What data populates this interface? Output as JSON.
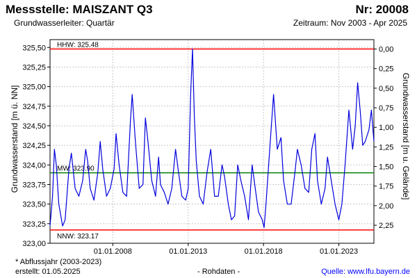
{
  "header": {
    "title": "Messstelle: MAISZANT Q3",
    "number": "Nr: 20008",
    "aquifer": "Grundwasserleiter: Quartär",
    "period": "Zeitraum: Nov 2003 - Apr 2025"
  },
  "footer": {
    "note": "* Abflussjahr (2003-2023)",
    "created": "erstellt:  01.05.2025",
    "raw": "- Rohdaten -",
    "source": "Quelle: www.lfu.bayern.de"
  },
  "colors": {
    "series": "#0000dd",
    "hhw": "#ff0000",
    "nnw": "#ff0000",
    "mw": "#008000",
    "grid": "#c8c8c8"
  },
  "chart_data": {
    "type": "line",
    "xlabel": "",
    "ylabel": "Grundwasserstand [m ü. NN]",
    "y2label": "Grundwasserstand [m u. Gelände]",
    "xlim": [
      "2003-11-01",
      "2025-04-30"
    ],
    "ylim": [
      323.0,
      325.6
    ],
    "x_ticks": [
      "01.01.2008",
      "01.01.2013",
      "01.01.2018",
      "01.01.2023"
    ],
    "y_ticks": [
      "323,00",
      "323,25",
      "323,50",
      "323,75",
      "324,00",
      "324,25",
      "324,50",
      "324,75",
      "325,00",
      "325,25",
      "325,50"
    ],
    "y2_ticks": [
      "0,00",
      "0,25",
      "0,50",
      "0,75",
      "1,00",
      "1,25",
      "1,50",
      "1,75",
      "2,00",
      "2,25"
    ],
    "y2_ground_level": 325.48,
    "grid": true,
    "reference_lines": [
      {
        "label": "HHW: 325.48",
        "value": 325.48
      },
      {
        "label": "MW: 323.90",
        "value": 323.9
      },
      {
        "label": "NNW: 323.17",
        "value": 323.17
      }
    ],
    "series": [
      {
        "x": [
          "2003-11-01",
          "2004-01-01",
          "2004-02-15",
          "2004-04-01",
          "2004-06-01",
          "2004-09-01",
          "2004-11-01",
          "2005-02-01",
          "2005-04-01",
          "2005-07-01",
          "2005-10-01",
          "2006-01-01",
          "2006-03-15",
          "2006-05-01",
          "2006-07-01",
          "2006-10-01",
          "2007-01-01",
          "2007-03-01",
          "2007-05-01",
          "2007-08-01",
          "2007-11-01",
          "2008-02-01",
          "2008-03-20",
          "2008-06-01",
          "2008-09-01",
          "2008-12-01",
          "2009-03-01",
          "2009-04-15",
          "2009-07-01",
          "2009-10-01",
          "2010-01-01",
          "2010-03-01",
          "2010-05-01",
          "2010-08-01",
          "2010-11-01",
          "2011-01-15",
          "2011-03-01",
          "2011-06-01",
          "2011-09-01",
          "2011-12-01",
          "2012-03-01",
          "2012-05-01",
          "2012-08-01",
          "2012-11-01",
          "2013-01-01",
          "2013-03-01",
          "2013-04-15",
          "2013-06-01",
          "2013-07-15",
          "2013-10-01",
          "2014-01-01",
          "2014-04-01",
          "2014-07-01",
          "2014-10-01",
          "2015-01-01",
          "2015-04-01",
          "2015-06-01",
          "2015-09-01",
          "2015-11-15",
          "2016-02-01",
          "2016-04-15",
          "2016-07-01",
          "2016-10-01",
          "2017-01-01",
          "2017-04-01",
          "2017-06-01",
          "2017-09-01",
          "2017-12-01",
          "2018-01-15",
          "2018-03-01",
          "2018-06-01",
          "2018-09-01",
          "2018-12-01",
          "2019-03-01",
          "2019-05-01",
          "2019-08-01",
          "2019-11-01",
          "2020-02-01",
          "2020-04-01",
          "2020-07-01",
          "2020-10-01",
          "2021-01-01",
          "2021-03-15",
          "2021-06-01",
          "2021-08-01",
          "2021-11-01",
          "2022-02-01",
          "2022-04-01",
          "2022-07-01",
          "2022-10-01",
          "2023-01-01",
          "2023-03-15",
          "2023-06-01",
          "2023-09-01",
          "2023-12-01",
          "2024-02-01",
          "2024-04-01",
          "2024-06-01",
          "2024-08-01",
          "2024-10-01",
          "2025-01-01",
          "2025-03-01",
          "2025-04-30"
        ],
        "values": [
          323.22,
          323.6,
          324.2,
          324.0,
          323.5,
          323.22,
          323.3,
          323.95,
          324.15,
          323.7,
          323.6,
          323.8,
          324.2,
          324.05,
          323.7,
          323.55,
          323.9,
          324.3,
          323.95,
          323.6,
          323.7,
          323.95,
          324.4,
          324.0,
          323.65,
          323.6,
          324.55,
          324.9,
          324.3,
          323.7,
          323.75,
          324.6,
          324.3,
          323.8,
          323.6,
          324.1,
          323.75,
          323.65,
          323.5,
          323.7,
          324.2,
          323.95,
          323.6,
          323.55,
          323.7,
          324.9,
          325.48,
          324.6,
          324.05,
          323.6,
          323.5,
          323.9,
          324.2,
          323.6,
          323.6,
          324.0,
          323.85,
          323.5,
          323.3,
          323.35,
          324.0,
          323.8,
          323.6,
          323.3,
          324.0,
          323.75,
          323.4,
          323.3,
          323.2,
          323.5,
          324.2,
          324.9,
          324.2,
          324.35,
          323.8,
          323.5,
          323.5,
          323.9,
          324.2,
          324.0,
          323.7,
          323.65,
          324.2,
          324.4,
          323.8,
          323.5,
          323.7,
          324.1,
          323.8,
          323.5,
          323.3,
          323.5,
          324.0,
          324.7,
          324.2,
          324.5,
          325.05,
          324.7,
          324.25,
          324.3,
          324.45,
          324.7,
          324.3
        ]
      }
    ]
  }
}
